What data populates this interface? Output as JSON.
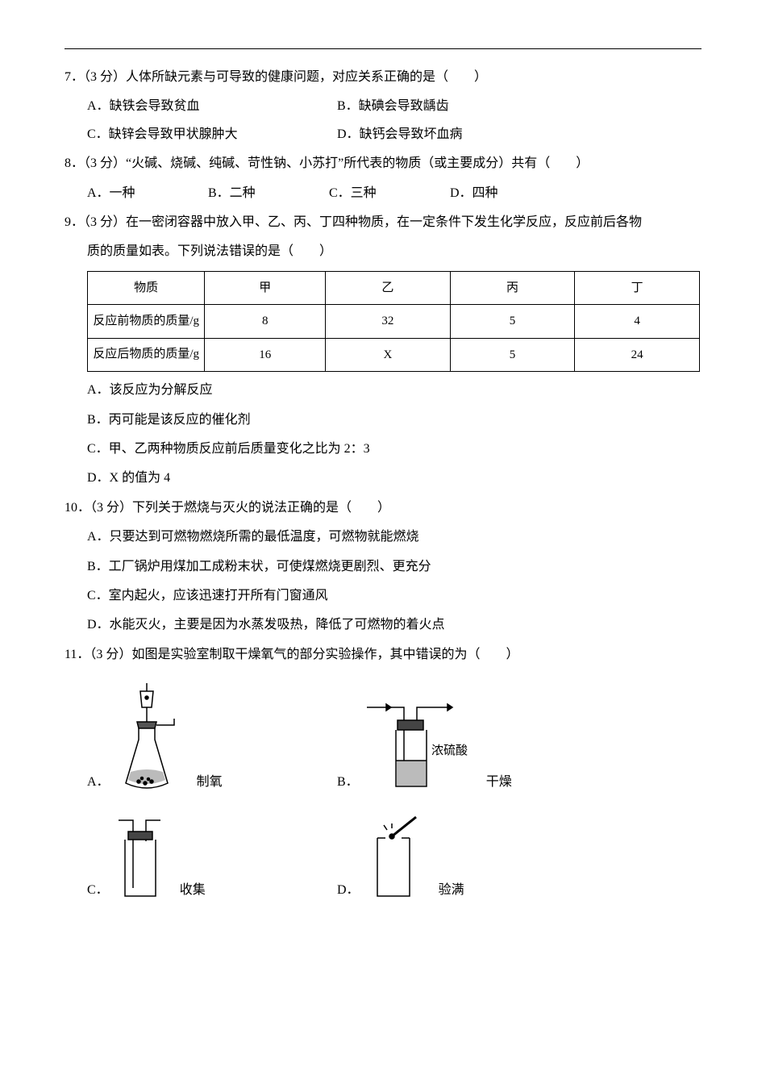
{
  "hr_color": "#000000",
  "q7": {
    "num": "7．",
    "points": "（3 分）",
    "stem": "人体所缺元素与可导致的健康问题，对应关系正确的是（　　）",
    "A": "A．缺铁会导致贫血",
    "B": "B．缺碘会导致龋齿",
    "C": "C．缺锌会导致甲状腺肿大",
    "D": "D．缺钙会导致坏血病"
  },
  "q8": {
    "num": "8．",
    "points": "（3 分）",
    "stem": "“火碱、烧碱、纯碱、苛性钠、小苏打”所代表的物质（或主要成分）共有（　　）",
    "A": "A．一种",
    "B": "B．二种",
    "C": "C．三种",
    "D": "D．四种"
  },
  "q9": {
    "num": "9．",
    "points": "（3 分）",
    "stem1": "在一密闭容器中放入甲、乙、丙、丁四种物质，在一定条件下发生化学反应，反应前后各物",
    "stem2": "质的质量如表。下列说法错误的是（　　）",
    "table": {
      "header": [
        "物质",
        "甲",
        "乙",
        "丙",
        "丁"
      ],
      "row1_label": "反应前物质的质量/g",
      "row1": [
        "8",
        "32",
        "5",
        "4"
      ],
      "row2_label": "反应后物质的质量/g",
      "row2": [
        "16",
        "X",
        "5",
        "24"
      ],
      "col_widths": [
        "140px",
        "145px",
        "150px",
        "150px",
        "150px"
      ]
    },
    "A": "A．该反应为分解反应",
    "B": "B．丙可能是该反应的催化剂",
    "C": "C．甲、乙两种物质反应前后质量变化之比为 2：3",
    "D": "D．X 的值为 4"
  },
  "q10": {
    "num": "10．",
    "points": "（3 分）",
    "stem": "下列关于燃烧与灭火的说法正确的是（　　）",
    "A": "A．只要达到可燃物燃烧所需的最低温度，可燃物就能燃烧",
    "B": "B．工厂锅炉用煤加工成粉末状，可使煤燃烧更剧烈、更充分",
    "C": "C．室内起火，应该迅速打开所有门窗通风",
    "D": "D．水能灭火，主要是因为水蒸发吸热，降低了可燃物的着火点"
  },
  "q11": {
    "num": "11．",
    "points": "（3 分）",
    "stem": "如图是实验室制取干燥氧气的部分实验操作，其中错误的为（　　）",
    "A_letter": "A．",
    "A_caption": "制氧",
    "B_letter": "B．",
    "B_caption": "干燥",
    "B_label": "浓硫酸",
    "C_letter": "C．",
    "C_caption": "收集",
    "D_letter": "D．",
    "D_caption": "验满"
  }
}
